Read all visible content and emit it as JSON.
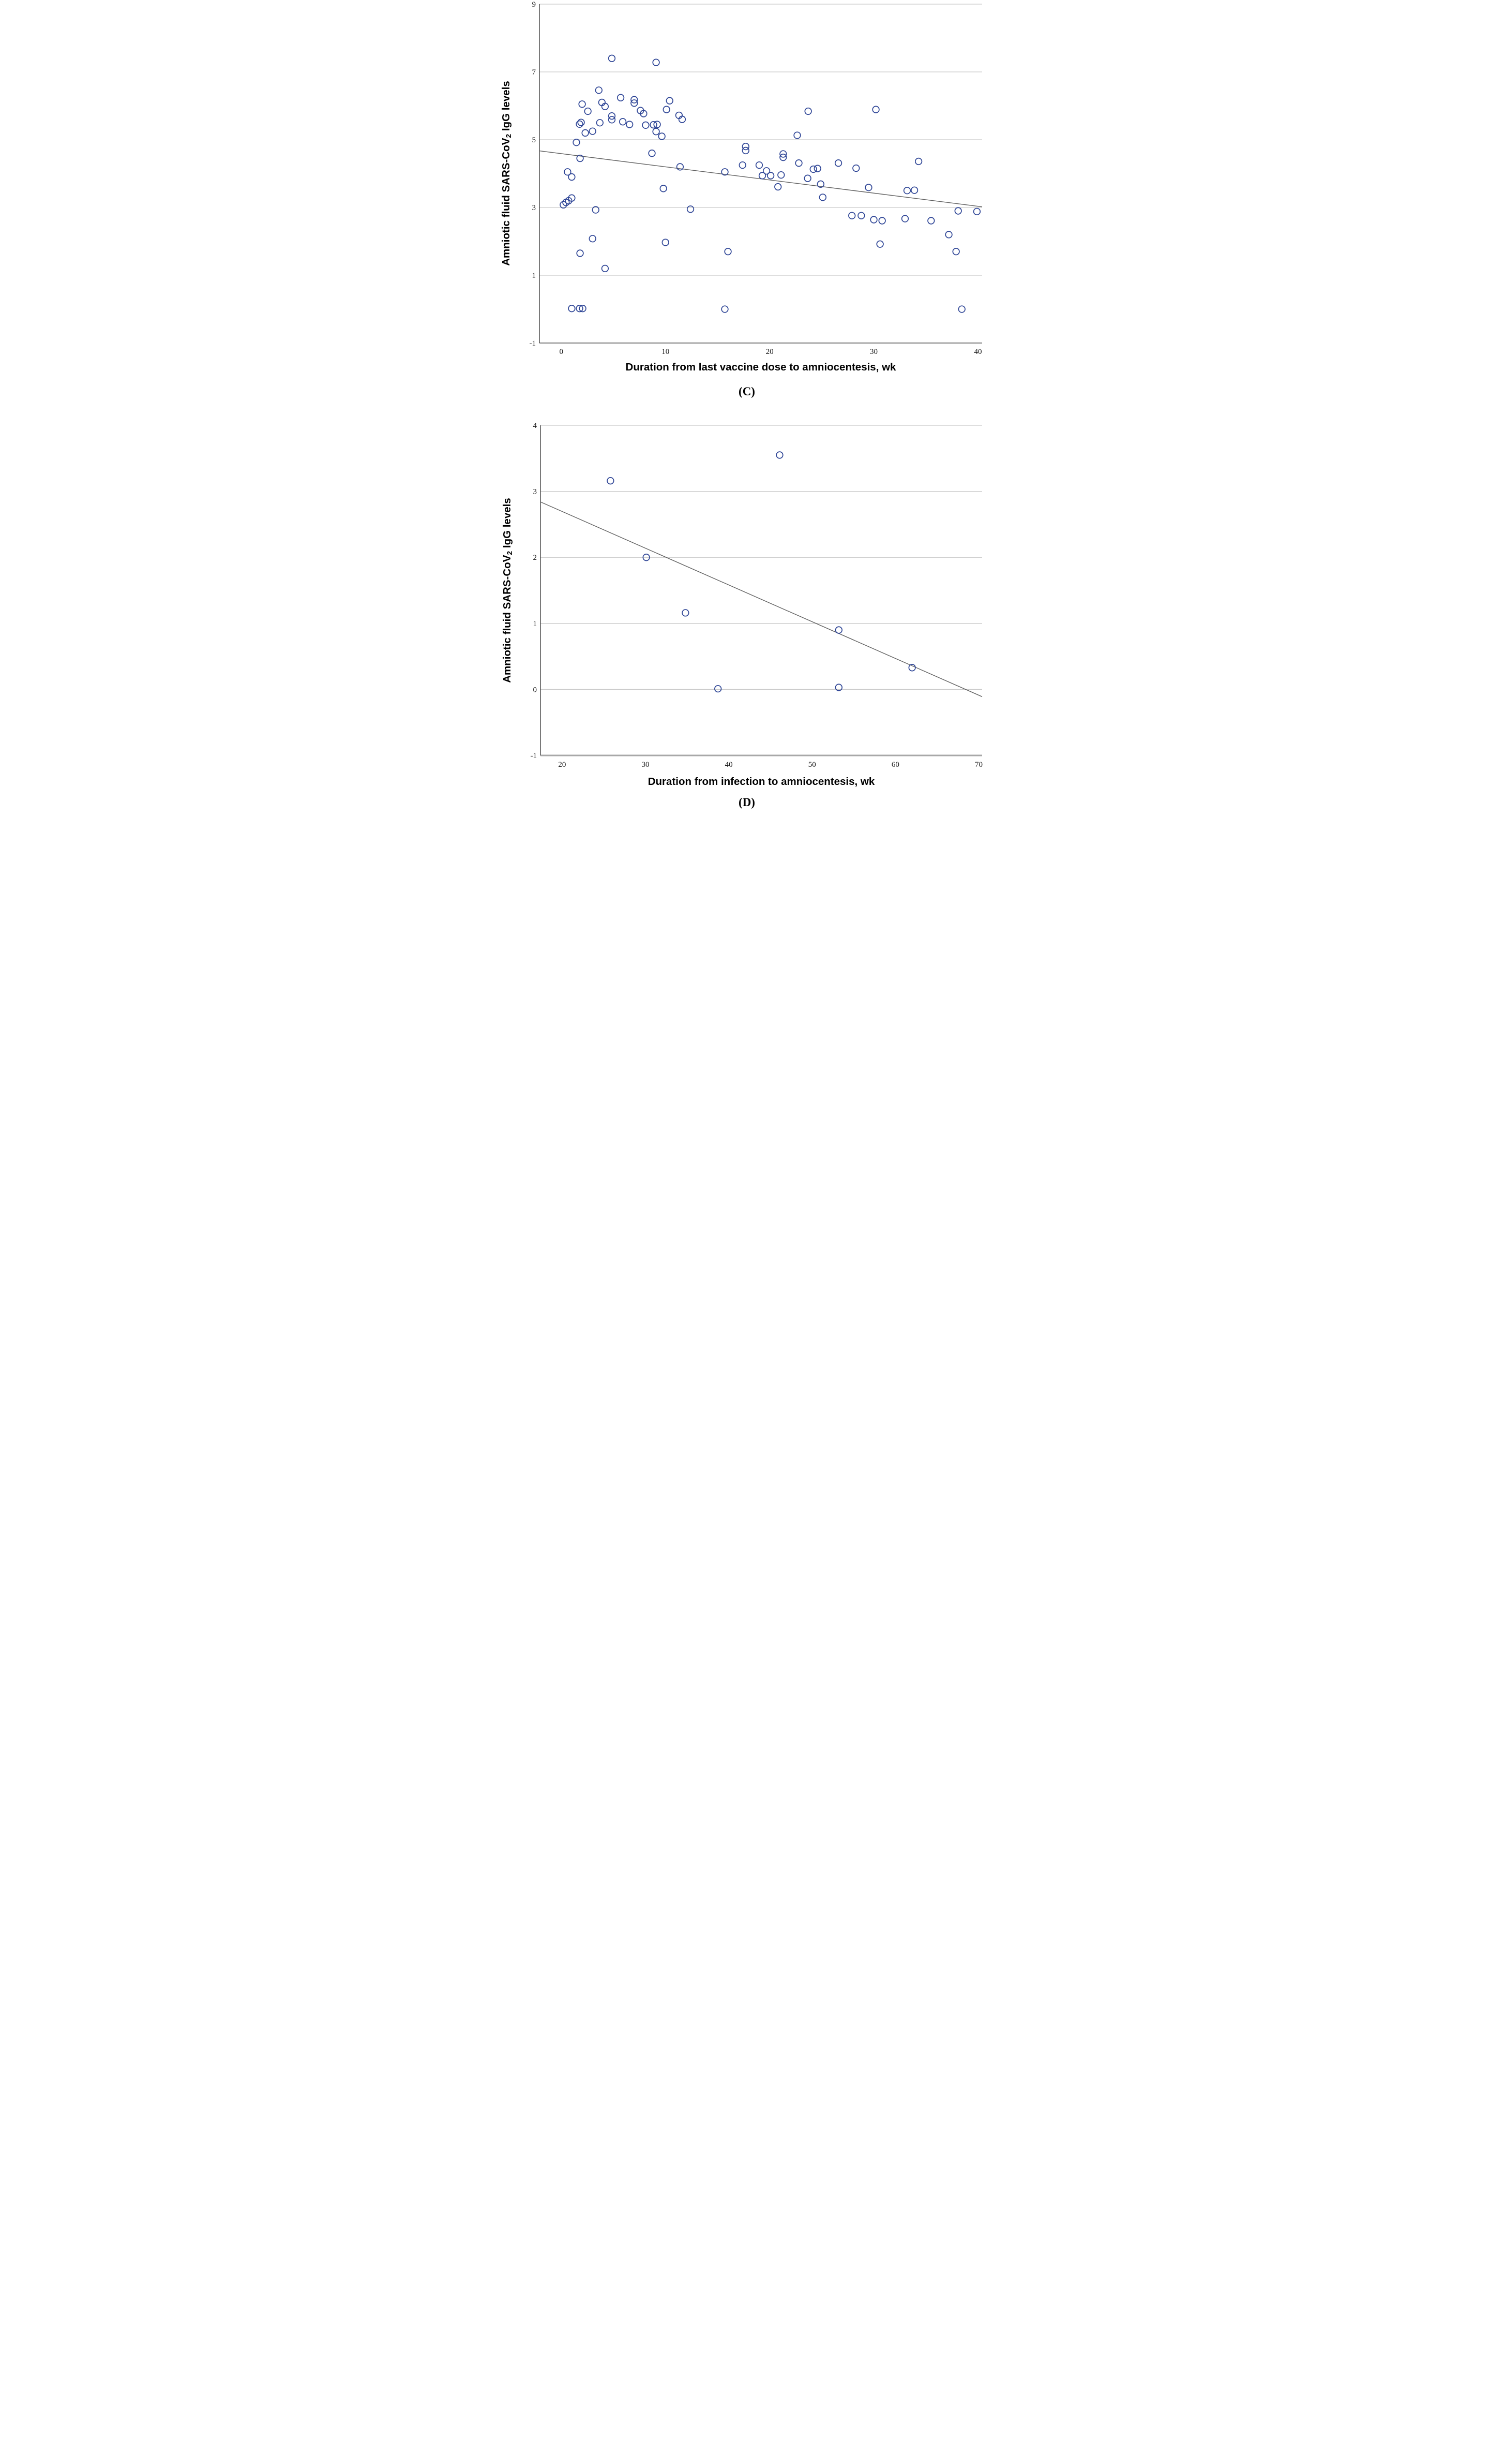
{
  "page": {
    "background": "#ffffff"
  },
  "colors": {
    "point_stroke": "#2e4596",
    "grid": "#c9c9c9",
    "axis_y_line": "#404040",
    "axis_x_baseline": "#a8a8a8",
    "regression": "#606060",
    "tick_text": "#1a1a1a",
    "label_text": "#000000"
  },
  "ylabel_parts": {
    "pre": "Amniotic fluid SARS-CoV",
    "sub": "2",
    "post": " IgG levels"
  },
  "chart_data": [
    {
      "id": "C",
      "type": "scatter",
      "caption": "(C)",
      "xlabel": "Duration from last vaccine dose to amniocentesis, wk",
      "ylabel": "Amniotic fluid SARS-CoV2 IgG levels",
      "xlim": [
        -2.1,
        40.4
      ],
      "ylim": [
        -1,
        9
      ],
      "xticks": [
        0,
        10,
        20,
        30,
        40
      ],
      "yticks": [
        9,
        7,
        5,
        3,
        1,
        -1
      ],
      "gridlines_y": [
        9,
        7,
        5,
        3,
        1
      ],
      "grid": true,
      "legend": "none",
      "regression_line": {
        "x1": -2.1,
        "y1": 4.67,
        "x2": 40.4,
        "y2": 3.02
      },
      "points": [
        [
          0.2,
          3.08
        ],
        [
          0.45,
          3.15
        ],
        [
          0.7,
          3.2
        ],
        [
          1.0,
          3.28
        ],
        [
          0.6,
          4.05
        ],
        [
          1.0,
          3.9
        ],
        [
          1.45,
          4.92
        ],
        [
          1.8,
          4.45
        ],
        [
          1.75,
          5.46
        ],
        [
          1.9,
          5.51
        ],
        [
          2.0,
          6.05
        ],
        [
          2.55,
          5.84
        ],
        [
          2.3,
          5.2
        ],
        [
          3.0,
          5.25
        ],
        [
          3.3,
          2.93
        ],
        [
          3.0,
          2.08
        ],
        [
          1.8,
          1.65
        ],
        [
          1.0,
          0.02
        ],
        [
          1.75,
          0.02
        ],
        [
          2.05,
          0.02
        ],
        [
          4.2,
          1.2
        ],
        [
          3.6,
          6.46
        ],
        [
          3.9,
          6.1
        ],
        [
          4.2,
          5.98
        ],
        [
          3.7,
          5.5
        ],
        [
          4.85,
          5.7
        ],
        [
          4.85,
          5.59
        ],
        [
          4.85,
          7.4
        ],
        [
          5.7,
          6.24
        ],
        [
          5.9,
          5.53
        ],
        [
          6.55,
          5.45
        ],
        [
          7.0,
          6.18
        ],
        [
          7.0,
          6.08
        ],
        [
          7.6,
          5.86
        ],
        [
          7.9,
          5.77
        ],
        [
          8.1,
          5.43
        ],
        [
          8.85,
          5.44
        ],
        [
          9.2,
          5.45
        ],
        [
          9.1,
          5.24
        ],
        [
          9.65,
          5.1
        ],
        [
          9.1,
          7.28
        ],
        [
          10.1,
          5.89
        ],
        [
          10.4,
          6.15
        ],
        [
          11.3,
          5.72
        ],
        [
          11.6,
          5.6
        ],
        [
          8.7,
          4.6
        ],
        [
          11.4,
          4.2
        ],
        [
          9.8,
          3.56
        ],
        [
          10.0,
          1.97
        ],
        [
          12.4,
          2.95
        ],
        [
          15.7,
          4.05
        ],
        [
          16.0,
          1.7
        ],
        [
          15.7,
          0.0
        ],
        [
          17.7,
          4.8
        ],
        [
          17.7,
          4.68
        ],
        [
          17.4,
          4.25
        ],
        [
          19.0,
          4.25
        ],
        [
          19.7,
          4.08
        ],
        [
          19.3,
          3.94
        ],
        [
          20.1,
          3.94
        ],
        [
          21.1,
          3.96
        ],
        [
          20.8,
          3.61
        ],
        [
          21.3,
          4.58
        ],
        [
          21.3,
          4.48
        ],
        [
          22.65,
          5.13
        ],
        [
          22.8,
          4.31
        ],
        [
          23.65,
          3.86
        ],
        [
          23.7,
          5.84
        ],
        [
          24.2,
          4.13
        ],
        [
          24.6,
          4.15
        ],
        [
          24.9,
          3.69
        ],
        [
          25.1,
          3.3
        ],
        [
          26.6,
          4.31
        ],
        [
          28.3,
          4.16
        ],
        [
          29.5,
          3.59
        ],
        [
          30.2,
          5.89
        ],
        [
          33.2,
          3.5
        ],
        [
          33.9,
          3.51
        ],
        [
          34.3,
          4.36
        ],
        [
          27.9,
          2.76
        ],
        [
          28.8,
          2.76
        ],
        [
          30.0,
          2.64
        ],
        [
          30.8,
          2.61
        ],
        [
          33.0,
          2.67
        ],
        [
          35.5,
          2.61
        ],
        [
          38.1,
          2.9
        ],
        [
          39.9,
          2.88
        ],
        [
          37.2,
          2.2
        ],
        [
          30.6,
          1.92
        ],
        [
          37.9,
          1.7
        ],
        [
          38.45,
          0.0
        ]
      ]
    },
    {
      "id": "D",
      "type": "scatter",
      "caption": "(D)",
      "xlabel": "Duration from infection to amniocentesis, wk",
      "ylabel": "Amniotic fluid SARS-CoV2 IgG levels",
      "xlim": [
        17.4,
        70.4
      ],
      "ylim": [
        -1,
        4
      ],
      "xticks": [
        20,
        30,
        40,
        50,
        60,
        70
      ],
      "yticks": [
        4,
        3,
        2,
        1,
        0,
        -1
      ],
      "gridlines_y": [
        4,
        3,
        2,
        1,
        0
      ],
      "grid": true,
      "legend": "none",
      "regression_line": {
        "x1": 17.4,
        "y1": 2.84,
        "x2": 70.4,
        "y2": -0.11
      },
      "points": [
        [
          25.8,
          3.16
        ],
        [
          30.1,
          2.0
        ],
        [
          34.8,
          1.16
        ],
        [
          38.7,
          0.01
        ],
        [
          46.1,
          3.55
        ],
        [
          53.2,
          0.9
        ],
        [
          53.2,
          0.03
        ],
        [
          62.0,
          0.33
        ]
      ]
    }
  ]
}
